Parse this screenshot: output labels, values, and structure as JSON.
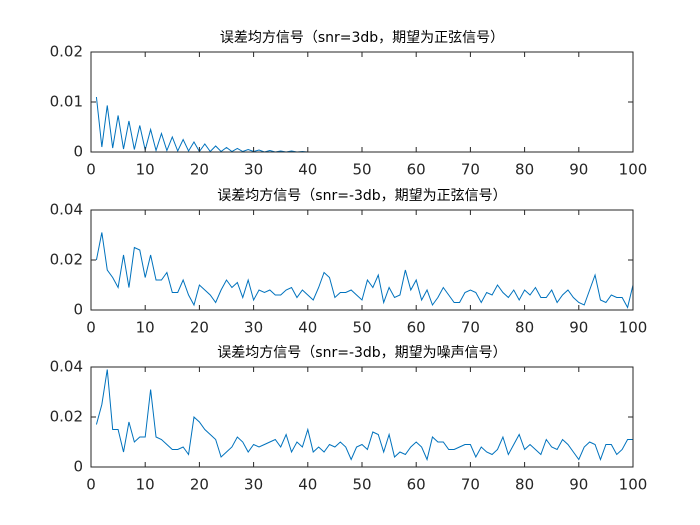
{
  "chart_data": [
    {
      "type": "line",
      "title": "误差均方信号（snr=3db，期望为正弦信号）",
      "x": [
        1,
        2,
        3,
        4,
        5,
        6,
        7,
        8,
        9,
        10,
        11,
        12,
        13,
        14,
        15,
        16,
        17,
        18,
        19,
        20,
        21,
        22,
        23,
        24,
        25,
        26,
        27,
        28,
        29,
        30,
        31,
        32,
        33,
        34,
        35,
        36,
        37,
        38,
        39,
        40,
        41,
        42,
        43,
        44,
        45,
        46,
        47,
        48,
        49,
        50,
        51,
        52,
        53,
        54,
        55,
        56,
        57,
        58,
        59,
        60,
        61,
        62,
        63,
        64,
        65,
        66,
        67,
        68,
        69,
        70,
        71,
        72,
        73,
        74,
        75,
        76,
        77,
        78,
        79,
        80,
        81,
        82,
        83,
        84,
        85,
        86,
        87,
        88,
        89,
        90,
        91,
        92,
        93,
        94,
        95,
        96,
        97,
        98,
        99,
        100
      ],
      "values": [
        0.011,
        0.001,
        0.0093,
        0.0008,
        0.0073,
        0.0006,
        0.0062,
        0.0005,
        0.0053,
        0.0004,
        0.0045,
        0.0003,
        0.0037,
        0.0003,
        0.003,
        0.0002,
        0.0025,
        0.0002,
        0.002,
        0.0001,
        0.0016,
        0.0001,
        0.0012,
        0.0001,
        0.0009,
        0.0001,
        0.0007,
        0.0001,
        0.0005,
        0.0001,
        0.0004,
        0,
        0.0003,
        0,
        0.0002,
        0,
        0.0002,
        0,
        0.0001,
        0,
        0,
        0,
        0,
        0,
        0,
        0,
        0,
        0,
        0,
        0,
        0,
        0,
        0,
        0,
        0,
        0,
        0,
        0,
        0,
        0,
        0,
        0,
        0,
        0,
        0,
        0,
        0,
        0,
        0,
        0,
        0,
        0,
        0,
        0,
        0,
        0,
        0,
        0,
        0,
        0,
        0,
        0,
        0,
        0,
        0,
        0,
        0,
        0,
        0,
        0,
        0,
        0,
        0,
        0,
        0,
        0,
        0,
        0,
        0,
        0
      ],
      "color": "#0072bd",
      "xlim": [
        0,
        100
      ],
      "ylim": [
        0,
        0.02
      ],
      "xticks": [
        0,
        10,
        20,
        30,
        40,
        50,
        60,
        70,
        80,
        90,
        100
      ],
      "yticks": [
        0,
        0.01,
        0.02
      ]
    },
    {
      "type": "line",
      "title": "误差均方信号（snr=-3db，期望为正弦信号）",
      "x": [
        1,
        2,
        3,
        4,
        5,
        6,
        7,
        8,
        9,
        10,
        11,
        12,
        13,
        14,
        15,
        16,
        17,
        18,
        19,
        20,
        21,
        22,
        23,
        24,
        25,
        26,
        27,
        28,
        29,
        30,
        31,
        32,
        33,
        34,
        35,
        36,
        37,
        38,
        39,
        40,
        41,
        42,
        43,
        44,
        45,
        46,
        47,
        48,
        49,
        50,
        51,
        52,
        53,
        54,
        55,
        56,
        57,
        58,
        59,
        60,
        61,
        62,
        63,
        64,
        65,
        66,
        67,
        68,
        69,
        70,
        71,
        72,
        73,
        74,
        75,
        76,
        77,
        78,
        79,
        80,
        81,
        82,
        83,
        84,
        85,
        86,
        87,
        88,
        89,
        90,
        91,
        92,
        93,
        94,
        95,
        96,
        97,
        98,
        99,
        100
      ],
      "values": [
        0.02,
        0.031,
        0.016,
        0.013,
        0.009,
        0.022,
        0.009,
        0.025,
        0.024,
        0.013,
        0.022,
        0.012,
        0.012,
        0.015,
        0.007,
        0.007,
        0.012,
        0.006,
        0.002,
        0.01,
        0.008,
        0.006,
        0.003,
        0.008,
        0.012,
        0.009,
        0.011,
        0.005,
        0.012,
        0.004,
        0.008,
        0.007,
        0.008,
        0.006,
        0.006,
        0.008,
        0.009,
        0.005,
        0.008,
        0.006,
        0.004,
        0.009,
        0.015,
        0.013,
        0.005,
        0.007,
        0.007,
        0.008,
        0.006,
        0.004,
        0.012,
        0.009,
        0.014,
        0.003,
        0.009,
        0.005,
        0.006,
        0.016,
        0.008,
        0.012,
        0.004,
        0.008,
        0.002,
        0.005,
        0.009,
        0.006,
        0.003,
        0.003,
        0.007,
        0.008,
        0.007,
        0.003,
        0.007,
        0.006,
        0.01,
        0.007,
        0.005,
        0.008,
        0.004,
        0.008,
        0.006,
        0.009,
        0.005,
        0.005,
        0.008,
        0.003,
        0.006,
        0.008,
        0.005,
        0.003,
        0.002,
        0.008,
        0.014,
        0.004,
        0.003,
        0.006,
        0.005,
        0.005,
        0.001,
        0.01
      ],
      "color": "#0072bd",
      "xlim": [
        0,
        100
      ],
      "ylim": [
        0,
        0.04
      ],
      "xticks": [
        0,
        10,
        20,
        30,
        40,
        50,
        60,
        70,
        80,
        90,
        100
      ],
      "yticks": [
        0,
        0.02,
        0.04
      ]
    },
    {
      "type": "line",
      "title": "误差均方信号（snr=-3db，期望为噪声信号）",
      "x": [
        1,
        2,
        3,
        4,
        5,
        6,
        7,
        8,
        9,
        10,
        11,
        12,
        13,
        14,
        15,
        16,
        17,
        18,
        19,
        20,
        21,
        22,
        23,
        24,
        25,
        26,
        27,
        28,
        29,
        30,
        31,
        32,
        33,
        34,
        35,
        36,
        37,
        38,
        39,
        40,
        41,
        42,
        43,
        44,
        45,
        46,
        47,
        48,
        49,
        50,
        51,
        52,
        53,
        54,
        55,
        56,
        57,
        58,
        59,
        60,
        61,
        62,
        63,
        64,
        65,
        66,
        67,
        68,
        69,
        70,
        71,
        72,
        73,
        74,
        75,
        76,
        77,
        78,
        79,
        80,
        81,
        82,
        83,
        84,
        85,
        86,
        87,
        88,
        89,
        90,
        91,
        92,
        93,
        94,
        95,
        96,
        97,
        98,
        99,
        100
      ],
      "values": [
        0.017,
        0.025,
        0.039,
        0.015,
        0.015,
        0.006,
        0.018,
        0.01,
        0.012,
        0.012,
        0.031,
        0.012,
        0.011,
        0.009,
        0.007,
        0.007,
        0.008,
        0.005,
        0.02,
        0.018,
        0.015,
        0.013,
        0.011,
        0.004,
        0.006,
        0.008,
        0.012,
        0.01,
        0.006,
        0.009,
        0.008,
        0.009,
        0.01,
        0.011,
        0.008,
        0.013,
        0.006,
        0.01,
        0.008,
        0.015,
        0.006,
        0.008,
        0.006,
        0.009,
        0.008,
        0.01,
        0.008,
        0.003,
        0.008,
        0.009,
        0.007,
        0.014,
        0.013,
        0.006,
        0.013,
        0.004,
        0.006,
        0.005,
        0.008,
        0.01,
        0.008,
        0.003,
        0.012,
        0.01,
        0.01,
        0.007,
        0.007,
        0.008,
        0.009,
        0.009,
        0.004,
        0.008,
        0.006,
        0.005,
        0.007,
        0.012,
        0.005,
        0.009,
        0.013,
        0.007,
        0.009,
        0.007,
        0.005,
        0.011,
        0.008,
        0.007,
        0.011,
        0.009,
        0.006,
        0.003,
        0.008,
        0.01,
        0.009,
        0.003,
        0.009,
        0.009,
        0.005,
        0.007,
        0.011,
        0.011
      ],
      "color": "#0072bd",
      "xlim": [
        0,
        100
      ],
      "ylim": [
        0,
        0.04
      ],
      "xticks": [
        0,
        10,
        20,
        30,
        40,
        50,
        60,
        70,
        80,
        90,
        100
      ],
      "yticks": [
        0,
        0.02,
        0.04
      ]
    }
  ]
}
